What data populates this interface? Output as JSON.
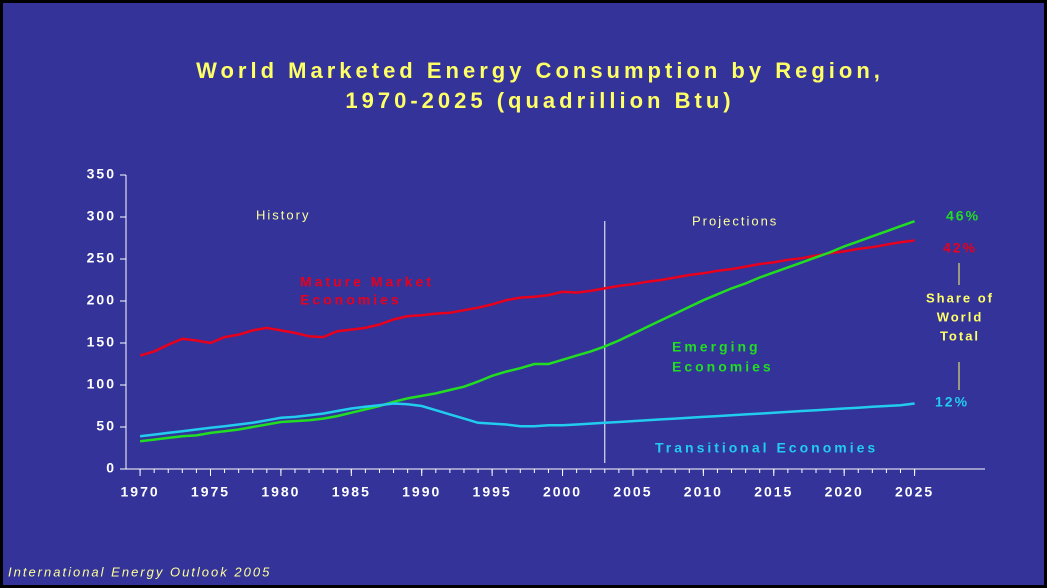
{
  "chart_data": {
    "type": "line",
    "title": [
      "World Marketed Energy Consumption by Region,",
      "1970-2025 (quadrillion Btu)"
    ],
    "x": [
      1970,
      1971,
      1972,
      1973,
      1974,
      1975,
      1976,
      1977,
      1978,
      1979,
      1980,
      1981,
      1982,
      1983,
      1984,
      1985,
      1986,
      1987,
      1988,
      1989,
      1990,
      1991,
      1992,
      1993,
      1994,
      1995,
      1996,
      1997,
      1998,
      1999,
      2000,
      2001,
      2002,
      2003,
      2004,
      2005,
      2006,
      2007,
      2008,
      2009,
      2010,
      2011,
      2012,
      2013,
      2014,
      2015,
      2016,
      2017,
      2018,
      2019,
      2020,
      2021,
      2022,
      2023,
      2024,
      2025
    ],
    "series": [
      {
        "name": [
          "Mature Market",
          "Economies"
        ],
        "color": "#e8001c",
        "values": [
          135,
          140,
          148,
          155,
          153,
          150,
          157,
          160,
          165,
          168,
          165,
          162,
          158,
          157,
          164,
          166,
          168,
          172,
          178,
          182,
          183,
          185,
          186,
          189,
          192,
          196,
          201,
          204,
          205,
          207,
          211,
          210,
          212,
          215,
          218,
          220,
          223,
          225,
          228,
          231,
          233,
          236,
          238,
          241,
          244,
          246,
          249,
          251,
          254,
          257,
          259,
          262,
          264,
          267,
          270,
          272
        ]
      },
      {
        "name": [
          "Emerging",
          "Economies"
        ],
        "color": "#22dd22",
        "values": [
          33,
          35,
          37,
          39,
          40,
          43,
          45,
          47,
          50,
          53,
          56,
          57,
          58,
          60,
          63,
          67,
          71,
          75,
          80,
          84,
          87,
          90,
          94,
          98,
          104,
          111,
          116,
          120,
          125,
          125,
          130,
          135,
          140,
          146,
          153,
          161,
          169,
          177,
          185,
          193,
          201,
          208,
          215,
          221,
          228,
          234,
          240,
          246,
          252,
          258,
          265,
          271,
          277,
          283,
          289,
          295
        ]
      },
      {
        "name": [
          "Transitional Economies"
        ],
        "color": "#22ccee",
        "values": [
          39,
          41,
          43,
          45,
          47,
          49,
          51,
          53,
          55,
          58,
          61,
          62,
          64,
          66,
          69,
          72,
          74,
          76,
          78,
          77,
          75,
          70,
          65,
          60,
          55,
          54,
          53,
          51,
          51,
          52,
          52,
          53,
          54,
          55,
          56,
          57,
          58,
          59,
          60,
          61,
          62,
          63,
          64,
          65,
          66,
          67,
          68,
          69,
          70,
          71,
          72,
          73,
          74,
          75,
          76,
          78
        ]
      }
    ],
    "shares": [
      "42%",
      "46%",
      "12%"
    ],
    "share_label": [
      "Share of",
      "World",
      "Total"
    ],
    "history_label": "History",
    "projections_label": "Projections",
    "projection_start": 2003,
    "xlim": [
      1969,
      2030
    ],
    "xticks": [
      1970,
      1975,
      1980,
      1985,
      1990,
      1995,
      2000,
      2005,
      2010,
      2015,
      2020,
      2025
    ],
    "ylim": [
      0,
      350
    ],
    "yticks": [
      0,
      50,
      100,
      150,
      200,
      250,
      300,
      350
    ],
    "source": "International Energy Outlook 2005"
  }
}
